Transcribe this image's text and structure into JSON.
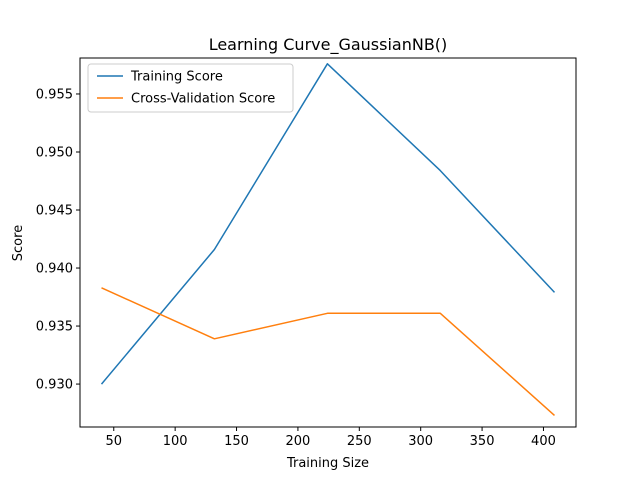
{
  "chart_data": {
    "type": "line",
    "title": "Learning Curve_GaussianNB()",
    "xlabel": "Training Size",
    "ylabel": "Score",
    "xlim": [
      22.5,
      426.5
    ],
    "ylim": [
      0.9263,
      0.9581
    ],
    "x_ticks": [
      50,
      100,
      150,
      200,
      250,
      300,
      350,
      400
    ],
    "y_ticks": [
      0.93,
      0.935,
      0.94,
      0.945,
      0.95,
      0.955
    ],
    "x_tick_labels": [
      "50",
      "100",
      "150",
      "200",
      "250",
      "300",
      "350",
      "400"
    ],
    "y_tick_labels": [
      "0.930",
      "0.935",
      "0.940",
      "0.945",
      "0.950",
      "0.955"
    ],
    "legend_position": "top-left",
    "grid": false,
    "x": [
      40,
      132,
      224,
      316,
      409
    ],
    "series": [
      {
        "name": "Training Score",
        "color": "#1f77b4",
        "values": [
          0.93,
          0.9416,
          0.9576,
          0.9484,
          0.9379
        ]
      },
      {
        "name": "Cross-Validation Score",
        "color": "#ff7f0e",
        "values": [
          0.9383,
          0.9339,
          0.9361,
          0.9361,
          0.9273
        ]
      }
    ]
  }
}
